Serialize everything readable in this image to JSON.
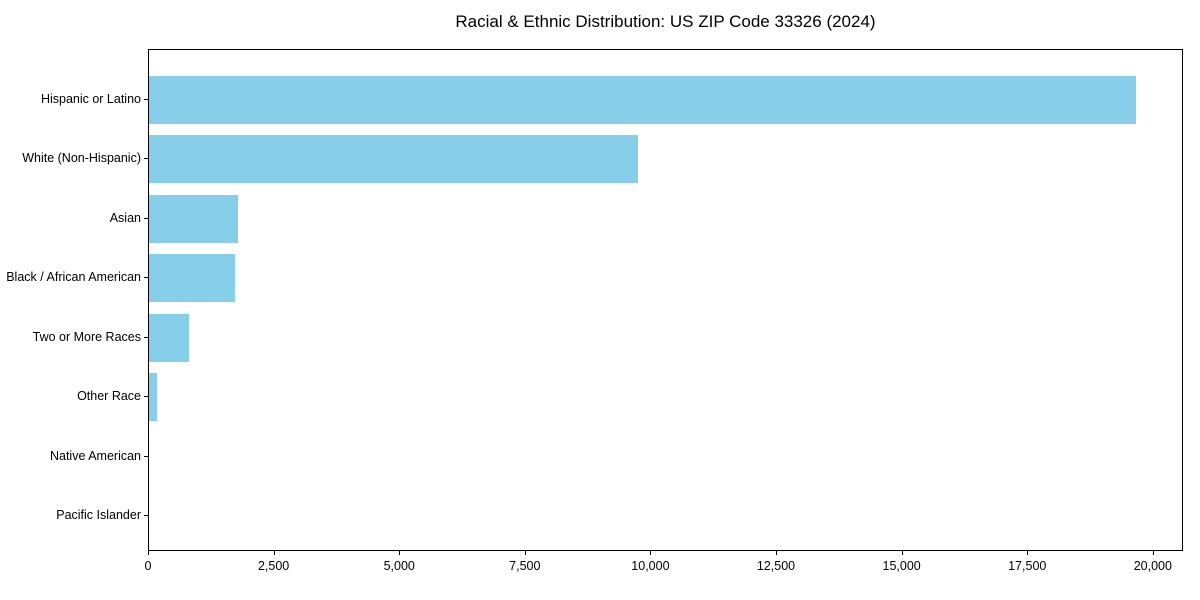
{
  "chart_data": {
    "type": "bar",
    "orientation": "horizontal",
    "title": "Racial & Ethnic Distribution: US ZIP Code 33326 (2024)",
    "categories": [
      "Hispanic or Latino",
      "White (Non-Hispanic)",
      "Asian",
      "Black / African American",
      "Two or More Races",
      "Other Race",
      "Native American",
      "Pacific Islander"
    ],
    "values": [
      19650,
      9740,
      1770,
      1710,
      800,
      160,
      0,
      0
    ],
    "xlabel": "",
    "ylabel": "",
    "xlim": [
      0,
      20600
    ],
    "x_ticks": [
      0,
      2500,
      5000,
      7500,
      10000,
      12500,
      15000,
      17500,
      20000
    ],
    "x_tick_labels": [
      "0",
      "2,500",
      "5,000",
      "7,500",
      "10,000",
      "12,500",
      "15,000",
      "17,500",
      "20,000"
    ],
    "bar_color": "#87CEEB",
    "axis_color": "#000000",
    "text_color": "#000000",
    "background": "#ffffff",
    "grid": false,
    "legend": "none"
  }
}
